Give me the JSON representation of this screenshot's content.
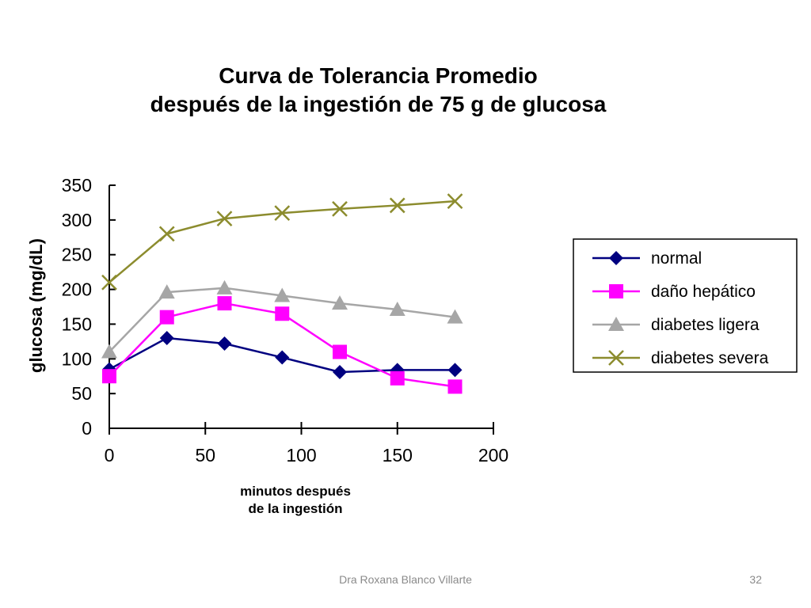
{
  "chart_data": {
    "type": "line",
    "title_line1": "Curva de Tolerancia Promedio",
    "title_line2": "después de la ingestión de 75 g de glucosa",
    "xlabel_line1": "minutos después",
    "xlabel_line2": "de la ingestión",
    "ylabel": "glucosa (mg/dL)",
    "xlim": [
      0,
      200
    ],
    "ylim": [
      0,
      350
    ],
    "xticks": [
      "0",
      "50",
      "100",
      "150",
      "200"
    ],
    "yticks": [
      "0",
      "50",
      "100",
      "150",
      "200",
      "250",
      "300",
      "350"
    ],
    "grid": false,
    "legend_position": "right",
    "x": [
      0,
      30,
      60,
      90,
      120,
      150,
      180
    ],
    "series": [
      {
        "name": "normal",
        "color": "#000080",
        "marker": "diamond",
        "values": [
          85,
          130,
          122,
          102,
          81,
          84,
          84
        ]
      },
      {
        "name": "daño hepático",
        "color": "#FF00FF",
        "marker": "square",
        "values": [
          75,
          160,
          180,
          165,
          110,
          72,
          60
        ]
      },
      {
        "name": "diabetes ligera",
        "color": "#A6A6A6",
        "marker": "triangle",
        "values": [
          110,
          196,
          202,
          191,
          180,
          171,
          160
        ]
      },
      {
        "name": "diabetes severa",
        "color": "#8C8C2E",
        "marker": "x",
        "values": [
          210,
          280,
          302,
          310,
          316,
          321,
          327
        ]
      }
    ]
  },
  "footer": {
    "author": "Dra Roxana Blanco Villarte",
    "page_number": "32"
  }
}
